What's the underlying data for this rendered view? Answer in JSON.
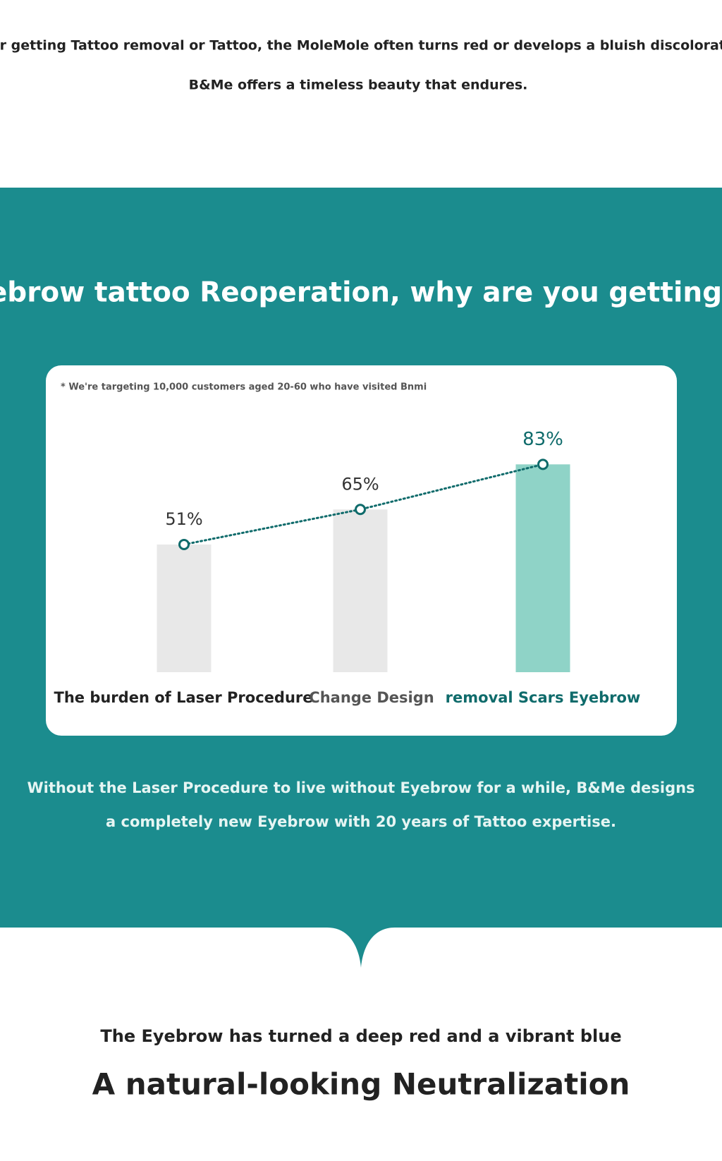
{
  "header": {
    "line1": "After getting Tattoo removal or Tattoo, the MoleMole often turns red or develops a bluish discoloration.",
    "line2": "B&Me offers a timeless beauty that endures."
  },
  "chart_data": {
    "type": "bar",
    "title": "Eyebrow tattoo Reoperation, why are you getting it?",
    "note": "* We're targeting 10,000 customers aged 20-60 who have visited Bnmi",
    "categories": [
      "The burden of Laser Procedure",
      "Change Design",
      "removal Scars Eyebrow"
    ],
    "values": [
      51,
      65,
      83
    ],
    "value_labels": [
      "51%",
      "65%",
      "83%"
    ],
    "colors": [
      "#e8e8e8",
      "#e8e8e8",
      "#8fd3c7"
    ],
    "highlight": 2,
    "line_color": "#0f6b6b"
  },
  "summary": {
    "line1": "Without the Laser Procedure to live without Eyebrow for a while, B&Me designs",
    "line2": "a completely new Eyebrow with 20 years of Tattoo expertise."
  },
  "footer": {
    "subtitle": "The Eyebrow has turned a deep red and a vibrant blue",
    "title": "A natural-looking Neutralization"
  }
}
